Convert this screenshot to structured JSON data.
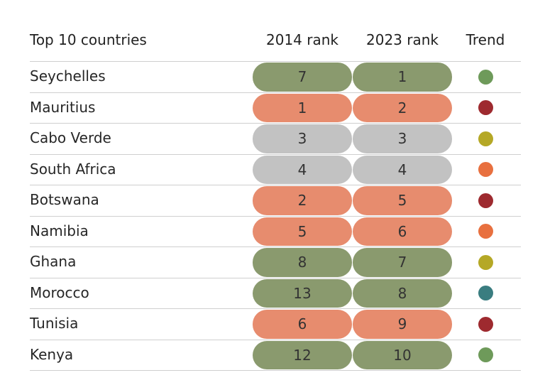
{
  "colors": {
    "pill": {
      "green": "#8a9a6e",
      "orange": "#e78c6e",
      "gray": "#c2c2c2"
    },
    "trend": {
      "green": "#6e9a5a",
      "darkred": "#9e2a2f",
      "olive": "#b5a826",
      "orange": "#e8703f",
      "teal": "#3a7d80"
    }
  },
  "chart_data": {
    "type": "table",
    "columns": [
      "Top 10 countries",
      "2014 rank",
      "2023 rank",
      "Trend"
    ],
    "rows": [
      {
        "country": "Seychelles",
        "rank_2014": "7",
        "rank_2023": "1",
        "color_2014": "green",
        "color_2023": "green",
        "trend": "green"
      },
      {
        "country": "Mauritius",
        "rank_2014": "1",
        "rank_2023": "2",
        "color_2014": "orange",
        "color_2023": "orange",
        "trend": "darkred"
      },
      {
        "country": "Cabo Verde",
        "rank_2014": "3",
        "rank_2023": "3",
        "color_2014": "gray",
        "color_2023": "gray",
        "trend": "olive"
      },
      {
        "country": "South Africa",
        "rank_2014": "4",
        "rank_2023": "4",
        "color_2014": "gray",
        "color_2023": "gray",
        "trend": "orange"
      },
      {
        "country": "Botswana",
        "rank_2014": "2",
        "rank_2023": "5",
        "color_2014": "orange",
        "color_2023": "orange",
        "trend": "darkred"
      },
      {
        "country": "Namibia",
        "rank_2014": "5",
        "rank_2023": "6",
        "color_2014": "orange",
        "color_2023": "orange",
        "trend": "orange"
      },
      {
        "country": "Ghana",
        "rank_2014": "8",
        "rank_2023": "7",
        "color_2014": "green",
        "color_2023": "green",
        "trend": "olive"
      },
      {
        "country": "Morocco",
        "rank_2014": "13",
        "rank_2023": "8",
        "color_2014": "green",
        "color_2023": "green",
        "trend": "teal"
      },
      {
        "country": "Tunisia",
        "rank_2014": "6",
        "rank_2023": "9",
        "color_2014": "orange",
        "color_2023": "orange",
        "trend": "darkred"
      },
      {
        "country": "Kenya",
        "rank_2014": "12",
        "rank_2023": "10",
        "color_2014": "green",
        "color_2023": "green",
        "trend": "green"
      }
    ]
  }
}
